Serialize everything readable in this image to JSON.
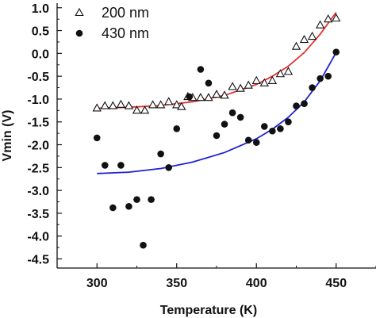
{
  "chart_data": {
    "type": "scatter",
    "xlabel": "Temperature (K)",
    "ylabel": "Vmin (V)",
    "xlim": [
      275,
      475
    ],
    "ylim": [
      -4.7,
      1.1
    ],
    "x_ticks": [
      300,
      350,
      400,
      450
    ],
    "x_tick_labels": [
      "300",
      "350",
      "400",
      "450"
    ],
    "y_ticks": [
      1.0,
      0.5,
      0.0,
      -0.5,
      -1.0,
      -1.5,
      -2.0,
      -2.5,
      -3.0,
      -3.5,
      -4.0,
      -4.5
    ],
    "y_tick_labels": [
      "1.0",
      "0.5",
      "0.0",
      "-0.5",
      "-1.0",
      "-1.5",
      "-2.0",
      "-2.5",
      "-3.0",
      "-3.5",
      "-4.0",
      "-4.5"
    ],
    "grid": false,
    "legend_position": "top-left",
    "series": [
      {
        "name": "200 nm",
        "marker": "open-triangle",
        "color": "#111111",
        "points": [
          [
            300,
            -1.2
          ],
          [
            305,
            -1.15
          ],
          [
            310,
            -1.15
          ],
          [
            315,
            -1.12
          ],
          [
            320,
            -1.15
          ],
          [
            325,
            -1.25
          ],
          [
            330,
            -1.25
          ],
          [
            335,
            -1.13
          ],
          [
            340,
            -1.13
          ],
          [
            345,
            -1.06
          ],
          [
            350,
            -1.13
          ],
          [
            353,
            -1.17
          ],
          [
            357,
            -0.95
          ],
          [
            360,
            -0.97
          ],
          [
            365,
            -0.97
          ],
          [
            370,
            -0.97
          ],
          [
            375,
            -0.9
          ],
          [
            380,
            -0.92
          ],
          [
            385,
            -0.73
          ],
          [
            390,
            -0.77
          ],
          [
            395,
            -0.7
          ],
          [
            400,
            -0.6
          ],
          [
            405,
            -0.65
          ],
          [
            410,
            -0.6
          ],
          [
            415,
            -0.45
          ],
          [
            420,
            -0.4
          ],
          [
            425,
            0.15
          ],
          [
            430,
            0.3
          ],
          [
            435,
            0.37
          ],
          [
            440,
            0.62
          ],
          [
            445,
            0.75
          ],
          [
            450,
            0.77
          ]
        ]
      },
      {
        "name": "430 nm",
        "marker": "filled-circle",
        "color": "#111111",
        "points": [
          [
            300,
            -1.85
          ],
          [
            305,
            -2.45
          ],
          [
            310,
            -3.38
          ],
          [
            315,
            -2.45
          ],
          [
            320,
            -3.35
          ],
          [
            325,
            -3.2
          ],
          [
            329,
            -4.2
          ],
          [
            334,
            -3.2
          ],
          [
            340,
            -2.2
          ],
          [
            345,
            -2.5
          ],
          [
            350,
            -1.65
          ],
          [
            358,
            -0.95
          ],
          [
            365,
            -0.35
          ],
          [
            370,
            -0.65
          ],
          [
            375,
            -1.8
          ],
          [
            380,
            -1.55
          ],
          [
            385,
            -1.3
          ],
          [
            390,
            -1.4
          ],
          [
            395,
            -1.9
          ],
          [
            400,
            -1.95
          ],
          [
            405,
            -1.6
          ],
          [
            410,
            -1.7
          ],
          [
            415,
            -1.65
          ],
          [
            420,
            -1.5
          ],
          [
            425,
            -1.15
          ],
          [
            430,
            -1.1
          ],
          [
            435,
            -0.75
          ],
          [
            440,
            -0.55
          ],
          [
            445,
            -0.5
          ],
          [
            450,
            0.03
          ]
        ]
      }
    ],
    "fits": [
      {
        "color": "#e53030",
        "points": [
          [
            300,
            -1.2
          ],
          [
            320,
            -1.18
          ],
          [
            340,
            -1.14
          ],
          [
            360,
            -1.06
          ],
          [
            380,
            -0.92
          ],
          [
            400,
            -0.68
          ],
          [
            410,
            -0.5
          ],
          [
            420,
            -0.28
          ],
          [
            430,
            0.02
          ],
          [
            440,
            0.42
          ],
          [
            450,
            0.9
          ]
        ]
      },
      {
        "color": "#2020d0",
        "points": [
          [
            300,
            -2.63
          ],
          [
            320,
            -2.6
          ],
          [
            340,
            -2.52
          ],
          [
            360,
            -2.38
          ],
          [
            380,
            -2.17
          ],
          [
            400,
            -1.87
          ],
          [
            410,
            -1.66
          ],
          [
            420,
            -1.4
          ],
          [
            430,
            -1.06
          ],
          [
            440,
            -0.6
          ],
          [
            450,
            0.02
          ]
        ]
      }
    ]
  }
}
